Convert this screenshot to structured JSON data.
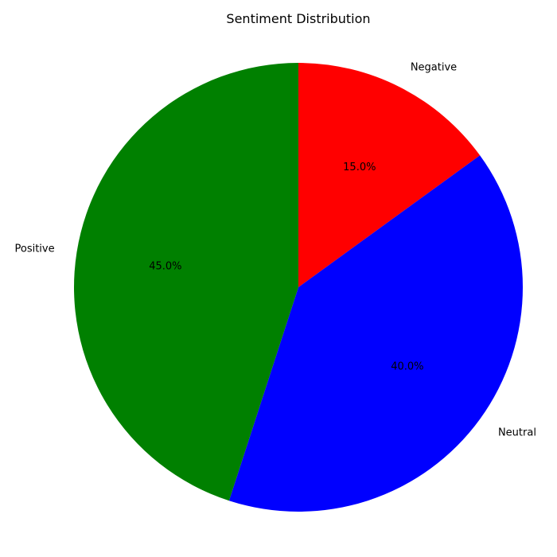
{
  "chart_data": {
    "type": "pie",
    "title": "Sentiment Distribution",
    "categories": [
      "Negative",
      "Neutral",
      "Positive"
    ],
    "values": [
      15.0,
      40.0,
      45.0
    ],
    "percent_labels": [
      "15.0%",
      "40.0%",
      "45.0%"
    ],
    "colors": [
      "#ff0000",
      "#0000ff",
      "#008000"
    ],
    "start_angle_deg": 90,
    "direction": "clockwise"
  }
}
